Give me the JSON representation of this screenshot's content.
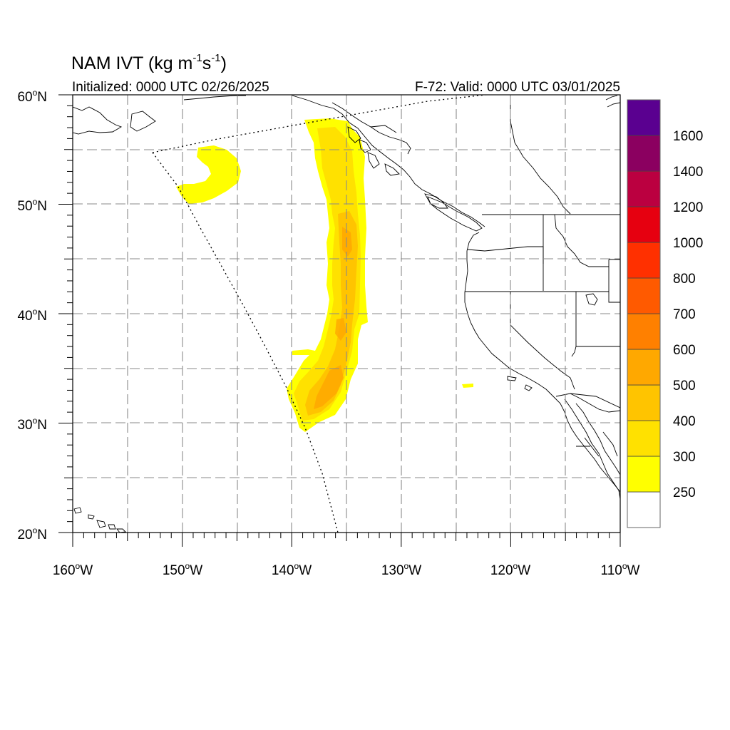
{
  "header": {
    "title_prefix": "NAM IVT (kg m",
    "title_exp1": "-1",
    "title_mid": "s",
    "title_exp2": "-1",
    "title_suffix": ")",
    "initialized": "Initialized: 0000 UTC 02/26/2025",
    "valid": "F-72: Valid: 0000 UTC 03/01/2025"
  },
  "map": {
    "lon_range": [
      -160,
      -110
    ],
    "lat_range": [
      20,
      60
    ],
    "lat_ticks": [
      {
        "value": 60,
        "label": "60",
        "hemi": "N"
      },
      {
        "value": 50,
        "label": "50",
        "hemi": "N"
      },
      {
        "value": 40,
        "label": "40",
        "hemi": "N"
      },
      {
        "value": 30,
        "label": "30",
        "hemi": "N"
      },
      {
        "value": 20,
        "label": "20",
        "hemi": "N"
      }
    ],
    "lon_ticks": [
      {
        "value": -160,
        "label": "160",
        "hemi": "W"
      },
      {
        "value": -150,
        "label": "150",
        "hemi": "W"
      },
      {
        "value": -140,
        "label": "140",
        "hemi": "W"
      },
      {
        "value": -130,
        "label": "130",
        "hemi": "W"
      },
      {
        "value": -120,
        "label": "120",
        "hemi": "W"
      },
      {
        "value": -110,
        "label": "110",
        "hemi": "W"
      }
    ],
    "grid_spacing_deg": 5,
    "grid_style": "dashed",
    "domain_boundary_style": "dotted"
  },
  "colorbar": {
    "labels": [
      "250",
      "300",
      "400",
      "500",
      "600",
      "700",
      "800",
      "1000",
      "1200",
      "1400",
      "1600"
    ],
    "colors": [
      "#ffffff",
      "#ffff00",
      "#ffe100",
      "#ffc400",
      "#ffa800",
      "#ff8000",
      "#ff5a00",
      "#ff3000",
      "#e60010",
      "#bb0040",
      "#8b0060",
      "#5a0090"
    ]
  },
  "colors": {
    "ivt_250_300": "#ffff00",
    "ivt_300_400": "#ffe100",
    "ivt_400_500": "#ffc400",
    "ivt_500_600": "#ffa800"
  }
}
